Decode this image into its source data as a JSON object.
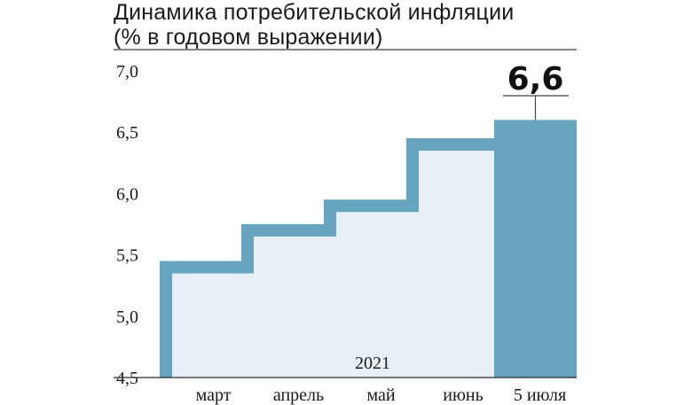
{
  "title_line1": "Динамика потребительской инфляции",
  "title_line2": "(% в годовом выражении)",
  "chart_data": {
    "type": "step-area",
    "categories": [
      "март",
      "апрель",
      "май",
      "июнь",
      "5 июля"
    ],
    "values": [
      5.4,
      5.7,
      5.9,
      6.4,
      6.6
    ],
    "ylim": [
      4.5,
      7.0
    ],
    "yticks": [
      "7,0",
      "6,5",
      "6,0",
      "5,5",
      "5,0",
      "4,5"
    ],
    "ytick_values": [
      7.0,
      6.5,
      6.0,
      5.5,
      5.0,
      4.5
    ],
    "year_label": "2021",
    "callout": "6,6",
    "colors": {
      "line": "#67a4bf",
      "fill": "#e7f0f7",
      "highlight": "#67a4bf"
    },
    "grid": false
  }
}
